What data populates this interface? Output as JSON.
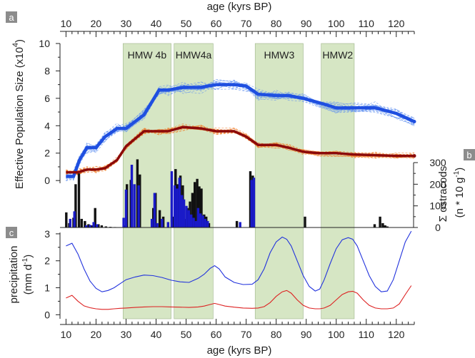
{
  "chart_data": [
    {
      "panel": "a",
      "type": "line",
      "top_axis": {
        "label": "age (kyrs BP)",
        "ticks": [
          10,
          20,
          30,
          40,
          50,
          60,
          70,
          80,
          90,
          100,
          110,
          120
        ],
        "range": [
          8,
          126
        ]
      },
      "ylabel_main": "Effective Population Size (x10",
      "ylabel_sup": "4",
      "ylabel_end": ")",
      "yticks": [
        0,
        2,
        4,
        6,
        8,
        10
      ],
      "ylim": [
        -0.2,
        10
      ],
      "shaded_periods": [
        {
          "label": "HMW 4b",
          "start": 29,
          "end": 45
        },
        {
          "label": "HMW4a",
          "start": 46,
          "end": 59
        },
        {
          "label": "HMW3",
          "start": 73,
          "end": 89
        },
        {
          "label": "HMW2",
          "start": 95,
          "end": 106
        }
      ],
      "series": [
        {
          "color": "#1f4fe0",
          "ensemble_color": "#5d8ff0",
          "x": [
            10,
            12.5,
            14.5,
            17,
            20,
            23,
            27,
            30,
            36,
            41,
            44,
            49,
            55,
            60,
            66,
            70,
            74,
            80,
            84,
            89,
            94,
            100,
            106,
            113,
            120,
            126
          ],
          "y": [
            0.3,
            0.3,
            1.5,
            2.4,
            2.4,
            3.2,
            3.8,
            3.8,
            4.8,
            6.6,
            6.6,
            6.8,
            6.8,
            7.0,
            7.0,
            6.9,
            6.3,
            6.2,
            6.2,
            6.0,
            5.7,
            5.3,
            5.3,
            5.3,
            4.9,
            4.3
          ]
        },
        {
          "color": "#8b0a0a",
          "ensemble_color": "#f07820",
          "x": [
            10,
            14,
            17,
            20,
            23,
            27,
            30,
            36,
            41,
            44,
            49,
            55,
            60,
            66,
            70,
            74,
            80,
            84,
            89,
            94,
            100,
            106,
            113,
            120,
            126
          ],
          "y": [
            0.6,
            0.6,
            0.8,
            0.8,
            0.9,
            1.5,
            2.5,
            3.6,
            3.6,
            3.6,
            3.9,
            3.8,
            3.6,
            3.6,
            3.2,
            2.6,
            2.6,
            2.4,
            2.1,
            2.0,
            2.0,
            1.9,
            1.85,
            1.8,
            1.8
          ]
        }
      ]
    },
    {
      "panel": "b",
      "type": "bar",
      "ylabel_main": "Σ ostracods",
      "ylabel_unit_a": "(n * 10 g",
      "ylabel_unit_sup": "-1",
      "ylabel_unit_b": ")",
      "yticks": [
        0,
        100,
        200,
        300
      ],
      "ylim": [
        0,
        300
      ],
      "series": [
        {
          "name": "black",
          "color": "#111111",
          "x": [
            10.1,
            11.1,
            12.5,
            13.2,
            14.3,
            15.2,
            16.3,
            17.5,
            18.6,
            19.7,
            20.8,
            21.9,
            23.3,
            24.8,
            26.3,
            29.6,
            30.3,
            31.6,
            33.8,
            34.6,
            39.1,
            39.8,
            41.2,
            42.4,
            45.8,
            46.5,
            47.3,
            48.1,
            48.9,
            49.7,
            50.5,
            51.3,
            52.1,
            52.9,
            53.7,
            54.4,
            55.1,
            56.0,
            56.7,
            57.6,
            66.9,
            71.4,
            72.2,
            89.6,
            112.8,
            114.6,
            115.5,
            116.3,
            117.0
          ],
          "values": [
            70,
            20,
            45,
            200,
            250,
            40,
            30,
            15,
            10,
            90,
            15,
            10,
            5,
            3,
            2,
            10,
            200,
            220,
            315,
            245,
            90,
            160,
            80,
            50,
            50,
            270,
            200,
            240,
            195,
            40,
            90,
            120,
            160,
            210,
            225,
            190,
            180,
            60,
            50,
            20,
            30,
            260,
            240,
            50,
            15,
            50,
            20,
            10,
            5
          ]
        },
        {
          "name": "blue",
          "color": "#1a1ac8",
          "x": [
            11.4,
            12.8,
            16.7,
            18.0,
            19.2,
            20.3,
            29.2,
            30.0,
            31.9,
            32.8,
            34.2,
            38.6,
            39.5,
            40.4,
            42.0,
            44.0,
            45.2,
            46.2,
            47.0,
            47.8,
            48.6,
            49.3,
            50.1,
            50.9,
            51.7,
            52.5,
            53.3,
            54.0,
            54.8,
            55.6,
            56.4,
            57.2,
            68.0,
            71.8,
            72.6
          ],
          "values": [
            40,
            75,
            10,
            12,
            25,
            15,
            45,
            175,
            290,
            200,
            195,
            40,
            160,
            20,
            40,
            25,
            260,
            195,
            180,
            230,
            150,
            130,
            100,
            80,
            60,
            45,
            30,
            90,
            65,
            55,
            40,
            30,
            25,
            220,
            230
          ]
        }
      ]
    },
    {
      "panel": "c",
      "type": "line",
      "ylabel_main": "precipitation",
      "ylabel_unit_a": "(mm d",
      "ylabel_unit_sup": "-1",
      "ylabel_unit_b": ")",
      "yticks": [
        0,
        1,
        2,
        3
      ],
      "ylim": [
        -0.15,
        3.05
      ],
      "xlabel": "age (kyrs BP)",
      "xticks": [
        10,
        20,
        30,
        40,
        50,
        60,
        70,
        80,
        90,
        100,
        110,
        120
      ],
      "xlim": [
        8,
        126
      ],
      "series": [
        {
          "color": "#2233dd",
          "x": [
            10,
            12,
            14,
            16,
            18,
            20,
            22,
            24,
            26,
            28,
            30,
            33,
            36,
            39,
            42,
            45,
            48,
            51,
            54,
            56,
            58,
            59.5,
            61,
            63,
            66,
            69,
            72,
            74,
            76,
            78,
            80,
            82,
            83.5,
            85,
            87,
            89,
            91,
            93,
            94.5,
            96,
            98,
            100,
            102,
            104,
            105.5,
            107,
            109,
            111,
            113,
            115,
            117,
            119,
            121,
            123,
            125
          ],
          "y": [
            2.55,
            2.65,
            2.25,
            1.7,
            1.25,
            0.98,
            0.85,
            0.9,
            1.0,
            1.15,
            1.3,
            1.4,
            1.47,
            1.45,
            1.38,
            1.28,
            1.22,
            1.2,
            1.35,
            1.5,
            1.72,
            1.82,
            1.7,
            1.4,
            1.2,
            1.12,
            1.13,
            1.3,
            1.7,
            2.3,
            2.7,
            2.88,
            2.8,
            2.55,
            2.0,
            1.45,
            1.05,
            0.88,
            0.95,
            1.3,
            1.9,
            2.45,
            2.78,
            2.86,
            2.8,
            2.55,
            2.0,
            1.45,
            1.05,
            0.85,
            0.88,
            1.3,
            2.0,
            2.7,
            3.1
          ]
        },
        {
          "color": "#dd2222",
          "x": [
            10,
            12,
            14,
            16,
            18,
            20,
            22,
            24,
            26,
            28,
            30,
            33,
            36,
            39,
            42,
            45,
            48,
            51,
            54,
            56,
            58,
            59.5,
            61,
            63,
            66,
            69,
            72,
            74,
            76,
            78,
            80,
            82,
            83.5,
            85,
            87,
            89,
            91,
            93,
            94.5,
            96,
            98,
            100,
            102,
            104,
            105.5,
            107,
            109,
            111,
            113,
            115,
            117,
            119,
            121,
            123,
            125
          ],
          "y": [
            0.62,
            0.72,
            0.5,
            0.33,
            0.26,
            0.22,
            0.2,
            0.2,
            0.22,
            0.24,
            0.25,
            0.27,
            0.29,
            0.3,
            0.3,
            0.29,
            0.28,
            0.27,
            0.29,
            0.32,
            0.38,
            0.42,
            0.38,
            0.32,
            0.28,
            0.25,
            0.24,
            0.25,
            0.3,
            0.45,
            0.68,
            0.85,
            0.9,
            0.8,
            0.55,
            0.35,
            0.25,
            0.22,
            0.22,
            0.25,
            0.35,
            0.55,
            0.75,
            0.85,
            0.87,
            0.8,
            0.55,
            0.35,
            0.25,
            0.22,
            0.22,
            0.25,
            0.4,
            0.75,
            1.08
          ]
        }
      ]
    }
  ],
  "panel_labels": [
    "a",
    "b",
    "c"
  ]
}
